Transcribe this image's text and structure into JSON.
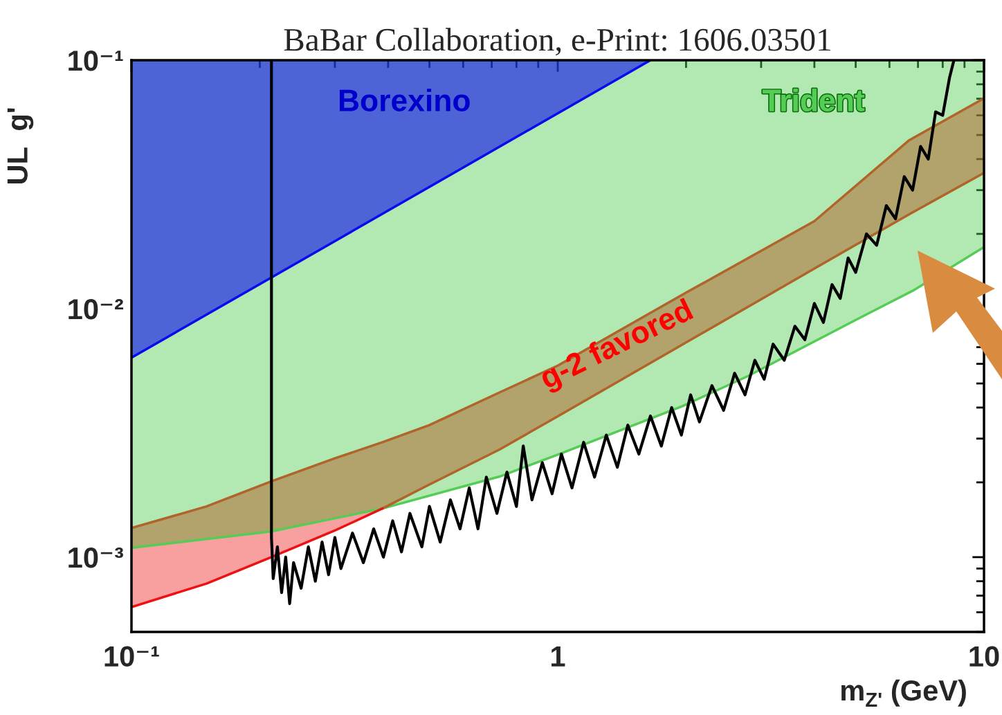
{
  "chart_data": {
    "type": "line",
    "title": "BaBar Collaboration, e-Print: 1606.03501",
    "xlabel": "m$_{Z'}$ (GeV)",
    "ylabel": "UL  g'",
    "log": "xy",
    "xlim": [
      0.1,
      10
    ],
    "ylim": [
      0.0005,
      0.1
    ],
    "xticks": [
      {
        "value": 0.1,
        "label": "10⁻¹"
      },
      1,
      10
    ],
    "yticks": [
      {
        "value": 0.001,
        "label": "10⁻³"
      },
      {
        "value": 0.01,
        "label": "10⁻²"
      },
      {
        "value": 0.1,
        "label": "10⁻¹"
      }
    ],
    "legend": false,
    "grid": false,
    "series": [
      {
        "name": "Trident",
        "color": "#55cc55",
        "x": [
          0.1,
          0.213,
          0.388,
          0.73,
          1.015,
          1.96,
          2.79,
          5.12,
          6.8,
          10
        ],
        "values": [
          0.00109,
          0.00127,
          0.00157,
          0.00211,
          0.00261,
          0.00405,
          0.00535,
          0.0092,
          0.0118,
          0.0177
        ],
        "lower": [
          0.00109,
          0.00127,
          0.00157,
          0.00211,
          0.00261,
          0.00405,
          0.00535,
          0.0092,
          0.0118,
          0.0177
        ],
        "upper": [
          0.1,
          0.1,
          0.1,
          0.1,
          0.1,
          0.1,
          0.1,
          0.1,
          0.1,
          0.1
        ]
      },
      {
        "name": "g-2 favored",
        "color": "#b0642a",
        "x": [
          0.1,
          0.15,
          0.213,
          0.3,
          0.388,
          0.5,
          0.73,
          1,
          2,
          4,
          6.68,
          10
        ],
        "values": [
          0.00131,
          0.0016,
          0.00202,
          0.0025,
          0.0029,
          0.0034,
          0.0046,
          0.0059,
          0.0116,
          0.0225,
          0.0477,
          0.0703
        ],
        "lower": [
          0.00063,
          0.000783,
          0.001,
          0.00128,
          0.00157,
          0.00196,
          0.00271,
          0.00369,
          0.00731,
          0.0145,
          0.024,
          0.0352
        ],
        "upper": [
          0.00131,
          0.0016,
          0.00202,
          0.0025,
          0.0029,
          0.0034,
          0.0046,
          0.0059,
          0.0116,
          0.0225,
          0.0477,
          0.0703
        ]
      },
      {
        "color": "#b0642a",
        "x": [
          0.388,
          0.5,
          0.73,
          1,
          2,
          4,
          6.68,
          10
        ],
        "values": [
          0.00157,
          0.00196,
          0.00271,
          0.00369,
          0.00731,
          0.0145,
          0.024,
          0.0352
        ]
      },
      {
        "color": "#ee1111",
        "x": [
          0.1,
          0.15,
          0.213,
          0.3,
          0.388
        ],
        "values": [
          0.00063,
          0.000783,
          0.001,
          0.00128,
          0.00157
        ],
        "lower": [
          0.00063,
          0.000783,
          0.001,
          0.00128,
          0.00157
        ],
        "upper": [
          0.00109,
          0.00118,
          0.00127,
          0.00142,
          0.00157
        ]
      },
      {
        "name": "Borexino",
        "color": "#0a0aee",
        "x": [
          0.1,
          1.65
        ],
        "values": [
          0.00635,
          0.1
        ],
        "lower": [
          0.00635,
          0.1
        ],
        "upper": [
          0.1,
          0.1
        ]
      },
      {
        "color": "#000000",
        "x": [
          0.213,
          0.213,
          0.215,
          0.22,
          0.225,
          0.23,
          0.235,
          0.24,
          0.25,
          0.26,
          0.27,
          0.28,
          0.29,
          0.3,
          0.31,
          0.33,
          0.35,
          0.37,
          0.39,
          0.41,
          0.43,
          0.45,
          0.48,
          0.5,
          0.53,
          0.56,
          0.59,
          0.62,
          0.65,
          0.68,
          0.72,
          0.76,
          0.8,
          0.83,
          0.87,
          0.92,
          0.97,
          1.02,
          1.08,
          1.15,
          1.22,
          1.3,
          1.38,
          1.46,
          1.55,
          1.65,
          1.75,
          1.85,
          1.95,
          2.05,
          2.15,
          2.3,
          2.45,
          2.6,
          2.75,
          2.9,
          3.05,
          3.2,
          3.4,
          3.6,
          3.8,
          4.0,
          4.2,
          4.4,
          4.6,
          4.8,
          5.0,
          5.3,
          5.6,
          5.9,
          6.2,
          6.5,
          6.8,
          7.1,
          7.4,
          7.7,
          8.0,
          8.3,
          8.5
        ],
        "values": [
          0.1,
          0.0012,
          0.00082,
          0.0011,
          0.00072,
          0.001,
          0.00065,
          0.00095,
          0.00075,
          0.0011,
          0.0008,
          0.00115,
          0.00085,
          0.0012,
          0.0009,
          0.00125,
          0.00095,
          0.0013,
          0.001,
          0.0014,
          0.00105,
          0.0015,
          0.0011,
          0.0016,
          0.00115,
          0.0017,
          0.0013,
          0.0019,
          0.0013,
          0.0021,
          0.0015,
          0.0022,
          0.0016,
          0.0028,
          0.0017,
          0.0024,
          0.0018,
          0.0026,
          0.0019,
          0.0029,
          0.0021,
          0.0031,
          0.0023,
          0.0034,
          0.0026,
          0.0037,
          0.0028,
          0.004,
          0.0031,
          0.0045,
          0.0035,
          0.0049,
          0.0039,
          0.0055,
          0.0045,
          0.0062,
          0.0052,
          0.0072,
          0.0062,
          0.0085,
          0.0075,
          0.0105,
          0.0088,
          0.0125,
          0.011,
          0.016,
          0.014,
          0.02,
          0.018,
          0.026,
          0.023,
          0.034,
          0.03,
          0.045,
          0.04,
          0.062,
          0.06,
          0.085,
          0.1
        ]
      }
    ]
  }
}
